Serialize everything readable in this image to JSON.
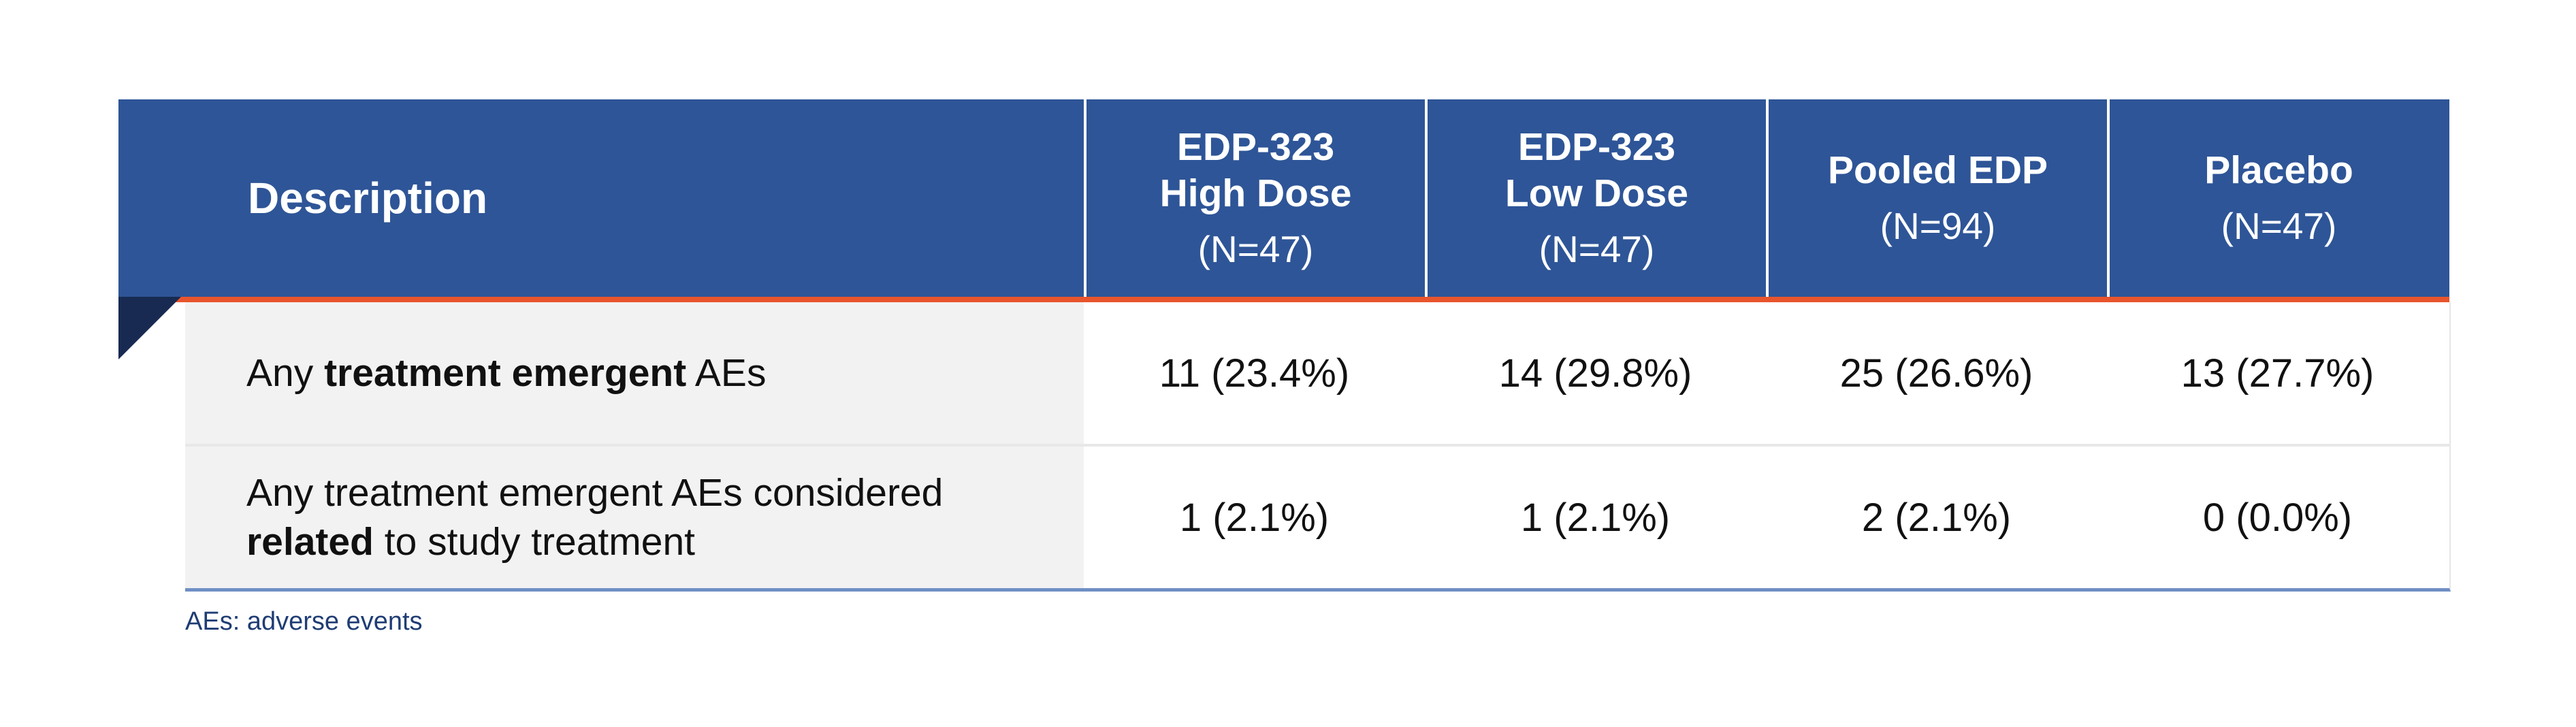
{
  "table": {
    "header": {
      "description": "Description",
      "columns": [
        {
          "line1": "EDP-323",
          "line2": "High Dose",
          "n": "(N=47)"
        },
        {
          "line1": "EDP-323",
          "line2": "Low Dose",
          "n": "(N=47)"
        },
        {
          "line1": "",
          "line2": "Pooled EDP",
          "n": "(N=94)"
        },
        {
          "line1": "",
          "line2": "Placebo",
          "n": "(N=47)"
        }
      ]
    },
    "rows": [
      {
        "desc_pre": "Any ",
        "desc_bold": "treatment emergent",
        "desc_post": " AEs",
        "values": [
          "11 (23.4%)",
          "14 (29.8%)",
          "25 (26.6%)",
          "13 (27.7%)"
        ]
      },
      {
        "desc_line1": "Any treatment emergent AEs considered",
        "desc_bold": "related",
        "desc_post": " to study treatment",
        "values": [
          "1 (2.1%)",
          "1 (2.1%)",
          "2 (2.1%)",
          "0 (0.0%)"
        ]
      }
    ]
  },
  "footnote": "AEs: adverse events",
  "colors": {
    "header_bg": "#2e5597",
    "accent_line": "#e8552d",
    "desc_bg": "#f2f2f2",
    "footer_rule": "#6f8fc5"
  }
}
